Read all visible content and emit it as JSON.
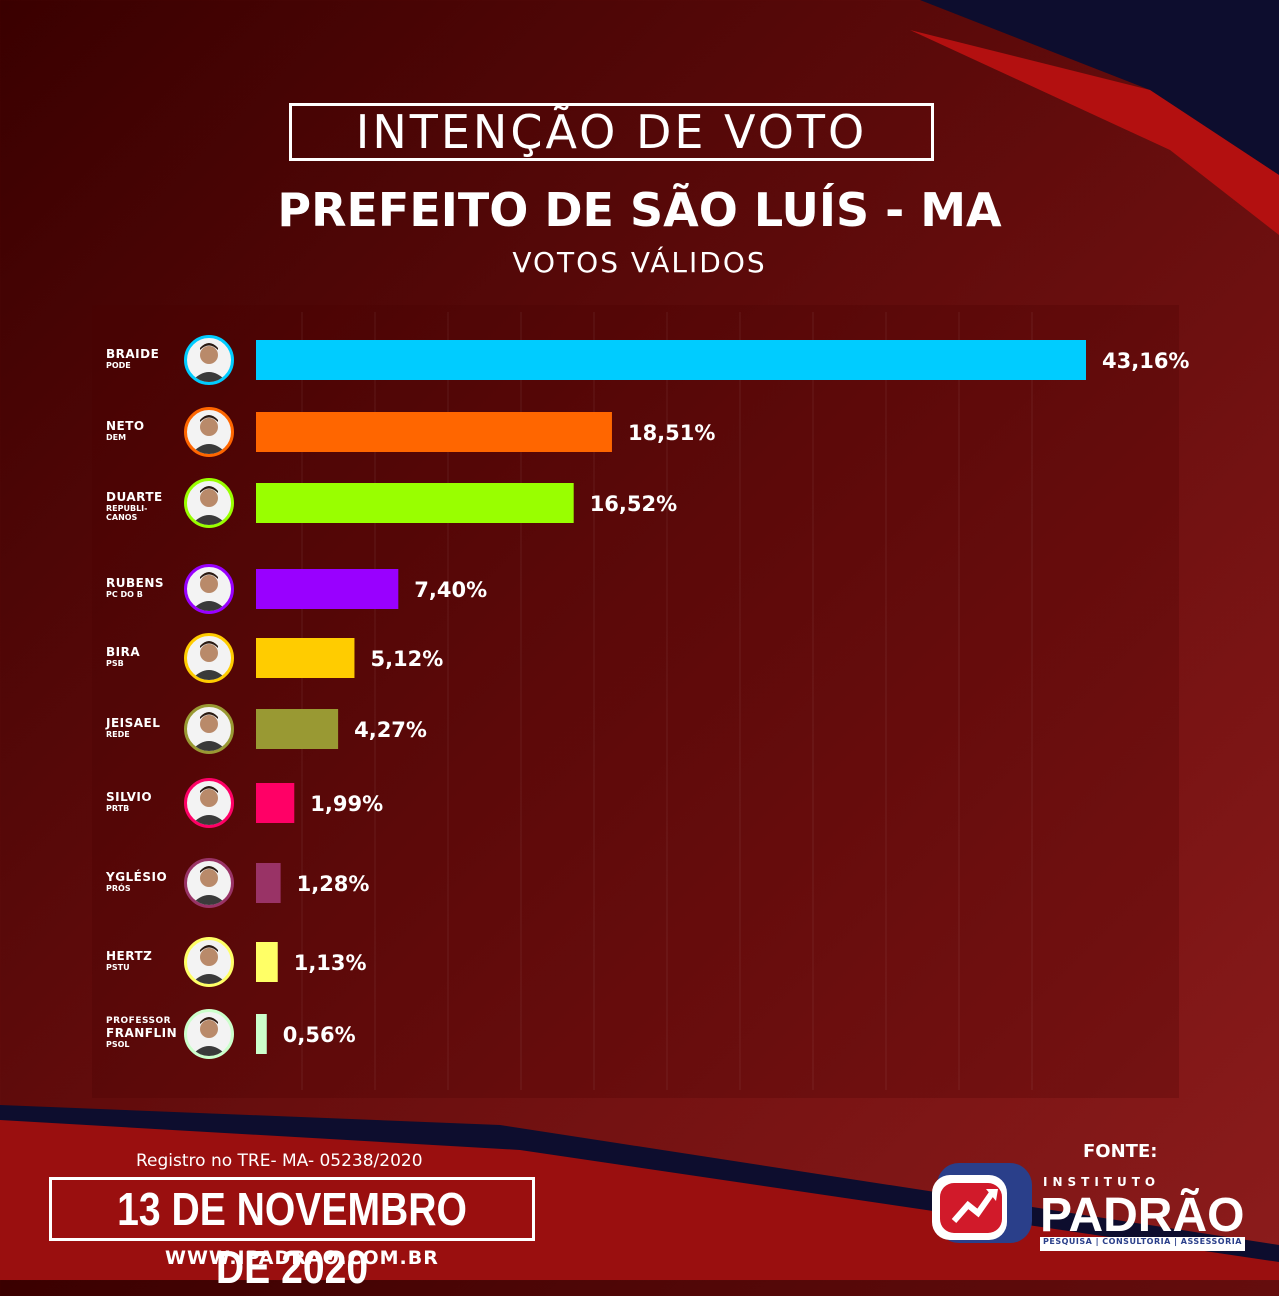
{
  "header": {
    "title": "INTENÇÃO DE VOTO",
    "subtitle": "PREFEITO DE SÃO LUÍS - MA",
    "caption": "VOTOS VÁLIDOS"
  },
  "chart_data": {
    "type": "bar",
    "orientation": "horizontal",
    "title": "INTENÇÃO DE VOTO",
    "subtitle": "PREFEITO DE SÃO LUÍS - MA",
    "xlabel": "",
    "ylabel": "",
    "grid": true,
    "categories": [
      {
        "name": "BRAIDE",
        "party": "PODE",
        "value": 43.16,
        "label": "43,16%",
        "color": "#00ccff"
      },
      {
        "name": "NETO",
        "party": "DEM",
        "value": 18.51,
        "label": "18,51%",
        "color": "#ff6600"
      },
      {
        "name": "DUARTE",
        "party": "REPUBLI-\nCANOS",
        "value": 16.52,
        "label": "16,52%",
        "color": "#99ff00"
      },
      {
        "name": "RUBENS",
        "party": "PC DO B",
        "value": 7.4,
        "label": "7,40%",
        "color": "#9900ff"
      },
      {
        "name": "BIRA",
        "party": "PSB",
        "value": 5.12,
        "label": "5,12%",
        "color": "#ffcc00"
      },
      {
        "name": "JEISAEL",
        "party": "REDE",
        "value": 4.27,
        "label": "4,27%",
        "color": "#999933"
      },
      {
        "name": "SILVIO",
        "party": "PRTB",
        "value": 1.99,
        "label": "1,99%",
        "color": "#ff0066"
      },
      {
        "name": "YGLÉSIO",
        "party": "PRÓS",
        "value": 1.28,
        "label": "1,28%",
        "color": "#993366"
      },
      {
        "name": "HERTZ",
        "party": "PSTU",
        "value": 1.13,
        "label": "1,13%",
        "color": "#ffff66"
      },
      {
        "name": "PROFESSOR\nFRANFLIN",
        "party": "PSOL",
        "value": 0.56,
        "label": "0,56%",
        "color": "#ccffcc"
      }
    ]
  },
  "footer": {
    "registration": "Registro no TRE- MA- 05238/2020",
    "date": "13 DE NOVEMBRO DE 2020",
    "url": "WWW.IPADRAO.COM.BR",
    "source_label": "FONTE:",
    "logo_institute": "INSTITUTO",
    "logo_name": "PADRÃO",
    "logo_tagline": "PESQUISA | CONSULTORIA | ASSESSORIA"
  }
}
